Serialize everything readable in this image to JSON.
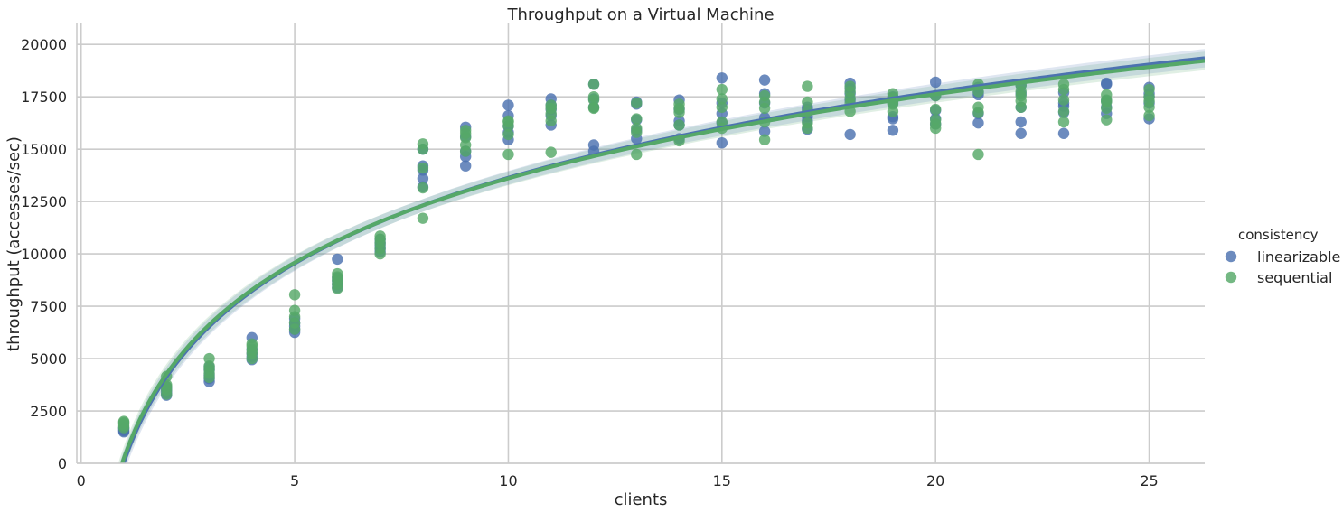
{
  "chart_data": {
    "type": "scatter",
    "title": "Throughput on a Virtual Machine",
    "xlabel": "clients",
    "ylabel": "throughput (accesses/sec)",
    "xlim": [
      -0.1,
      26.3
    ],
    "ylim": [
      0,
      21000
    ],
    "x_ticks": [
      0,
      5,
      10,
      15,
      20,
      25
    ],
    "y_ticks": [
      0,
      2500,
      5000,
      7500,
      10000,
      12500,
      15000,
      17500,
      20000
    ],
    "grid": true,
    "legend": {
      "title": "consistency",
      "placement": "right"
    },
    "fit": "logarithmic regression with confidence band",
    "series": [
      {
        "name": "linearizable",
        "color": "#4c72b0",
        "fit_line": {
          "a": 50,
          "b": 5900
        },
        "points": [
          [
            1,
            1500
          ],
          [
            1,
            1550
          ],
          [
            1,
            1600
          ],
          [
            1,
            1650
          ],
          [
            1,
            1700
          ],
          [
            2,
            3250
          ],
          [
            2,
            3350
          ],
          [
            2,
            3450
          ],
          [
            2,
            3550
          ],
          [
            2,
            3650
          ],
          [
            3,
            3900
          ],
          [
            3,
            4050
          ],
          [
            3,
            4200
          ],
          [
            3,
            4450
          ],
          [
            3,
            4600
          ],
          [
            4,
            4950
          ],
          [
            4,
            5100
          ],
          [
            4,
            5250
          ],
          [
            4,
            5450
          ],
          [
            4,
            6000
          ],
          [
            5,
            6250
          ],
          [
            5,
            6400
          ],
          [
            5,
            6550
          ],
          [
            5,
            6700
          ],
          [
            5,
            6900
          ],
          [
            6,
            8400
          ],
          [
            6,
            8550
          ],
          [
            6,
            8700
          ],
          [
            6,
            8850
          ],
          [
            6,
            9750
          ],
          [
            7,
            10100
          ],
          [
            7,
            10250
          ],
          [
            7,
            10400
          ],
          [
            7,
            10550
          ],
          [
            7,
            10700
          ],
          [
            8,
            13200
          ],
          [
            8,
            13600
          ],
          [
            8,
            14000
          ],
          [
            8,
            14200
          ],
          [
            8,
            15000
          ],
          [
            9,
            14200
          ],
          [
            9,
            14650
          ],
          [
            9,
            14900
          ],
          [
            9,
            15600
          ],
          [
            9,
            16050
          ],
          [
            10,
            15450
          ],
          [
            10,
            15800
          ],
          [
            10,
            16100
          ],
          [
            10,
            16600
          ],
          [
            10,
            17100
          ],
          [
            11,
            16150
          ],
          [
            11,
            16600
          ],
          [
            11,
            16900
          ],
          [
            11,
            17100
          ],
          [
            11,
            17400
          ],
          [
            12,
            14900
          ],
          [
            12,
            15200
          ],
          [
            12,
            17000
          ],
          [
            12,
            17400
          ],
          [
            12,
            18100
          ],
          [
            13,
            15500
          ],
          [
            13,
            15900
          ],
          [
            13,
            16400
          ],
          [
            13,
            17150
          ],
          [
            13,
            17250
          ],
          [
            14,
            15500
          ],
          [
            14,
            16150
          ],
          [
            14,
            16350
          ],
          [
            14,
            16900
          ],
          [
            14,
            17350
          ],
          [
            15,
            15300
          ],
          [
            15,
            16250
          ],
          [
            15,
            16700
          ],
          [
            15,
            17200
          ],
          [
            15,
            18400
          ],
          [
            16,
            15850
          ],
          [
            16,
            16500
          ],
          [
            16,
            17200
          ],
          [
            16,
            17650
          ],
          [
            16,
            18300
          ],
          [
            17,
            15950
          ],
          [
            17,
            16350
          ],
          [
            17,
            16550
          ],
          [
            17,
            16900
          ],
          [
            17,
            17000
          ],
          [
            18,
            15700
          ],
          [
            18,
            17350
          ],
          [
            18,
            17650
          ],
          [
            18,
            17900
          ],
          [
            18,
            18150
          ],
          [
            19,
            15900
          ],
          [
            19,
            16450
          ],
          [
            19,
            16550
          ],
          [
            19,
            17200
          ],
          [
            19,
            17500
          ],
          [
            20,
            16200
          ],
          [
            20,
            16450
          ],
          [
            20,
            16850
          ],
          [
            20,
            17550
          ],
          [
            20,
            18200
          ],
          [
            21,
            16250
          ],
          [
            21,
            16700
          ],
          [
            21,
            17600
          ],
          [
            21,
            17700
          ],
          [
            21,
            17950
          ],
          [
            22,
            15750
          ],
          [
            22,
            16300
          ],
          [
            22,
            17000
          ],
          [
            22,
            17650
          ],
          [
            22,
            18050
          ],
          [
            23,
            15750
          ],
          [
            23,
            16750
          ],
          [
            23,
            17050
          ],
          [
            23,
            17200
          ],
          [
            23,
            17700
          ],
          [
            24,
            16700
          ],
          [
            24,
            17000
          ],
          [
            24,
            17300
          ],
          [
            24,
            18100
          ],
          [
            24,
            18150
          ],
          [
            25,
            16450
          ],
          [
            25,
            17200
          ],
          [
            25,
            17500
          ],
          [
            25,
            17650
          ],
          [
            25,
            17950
          ]
        ]
      },
      {
        "name": "sequential",
        "color": "#55a868",
        "fit_line": {
          "a": 250,
          "b": 5800
        },
        "points": [
          [
            1,
            1700
          ],
          [
            1,
            1800
          ],
          [
            1,
            1900
          ],
          [
            1,
            1950
          ],
          [
            1,
            2000
          ],
          [
            2,
            3300
          ],
          [
            2,
            3500
          ],
          [
            2,
            3650
          ],
          [
            2,
            3750
          ],
          [
            2,
            4150
          ],
          [
            3,
            4100
          ],
          [
            3,
            4300
          ],
          [
            3,
            4500
          ],
          [
            3,
            4650
          ],
          [
            3,
            5000
          ],
          [
            4,
            5000
          ],
          [
            4,
            5250
          ],
          [
            4,
            5400
          ],
          [
            4,
            5600
          ],
          [
            4,
            5700
          ],
          [
            5,
            6400
          ],
          [
            5,
            6700
          ],
          [
            5,
            7000
          ],
          [
            5,
            7300
          ],
          [
            5,
            8050
          ],
          [
            6,
            8350
          ],
          [
            6,
            8550
          ],
          [
            6,
            8750
          ],
          [
            6,
            8900
          ],
          [
            6,
            9050
          ],
          [
            7,
            10000
          ],
          [
            7,
            10250
          ],
          [
            7,
            10500
          ],
          [
            7,
            10700
          ],
          [
            7,
            10850
          ],
          [
            8,
            11700
          ],
          [
            8,
            13150
          ],
          [
            8,
            14100
          ],
          [
            8,
            15000
          ],
          [
            8,
            15250
          ],
          [
            9,
            14900
          ],
          [
            9,
            15200
          ],
          [
            9,
            15550
          ],
          [
            9,
            15750
          ],
          [
            9,
            15900
          ],
          [
            10,
            14750
          ],
          [
            10,
            15700
          ],
          [
            10,
            16100
          ],
          [
            10,
            16300
          ],
          [
            10,
            16350
          ],
          [
            11,
            14850
          ],
          [
            11,
            16350
          ],
          [
            11,
            16700
          ],
          [
            11,
            16950
          ],
          [
            11,
            17100
          ],
          [
            12,
            16950
          ],
          [
            12,
            17000
          ],
          [
            12,
            17350
          ],
          [
            12,
            17500
          ],
          [
            12,
            18100
          ],
          [
            13,
            14750
          ],
          [
            13,
            15800
          ],
          [
            13,
            16000
          ],
          [
            13,
            16450
          ],
          [
            13,
            17200
          ],
          [
            14,
            15400
          ],
          [
            14,
            16150
          ],
          [
            14,
            16750
          ],
          [
            14,
            16950
          ],
          [
            14,
            17150
          ],
          [
            15,
            16000
          ],
          [
            15,
            16300
          ],
          [
            15,
            17000
          ],
          [
            15,
            17400
          ],
          [
            15,
            17850
          ],
          [
            16,
            15450
          ],
          [
            16,
            16300
          ],
          [
            16,
            16950
          ],
          [
            16,
            17250
          ],
          [
            16,
            17550
          ],
          [
            17,
            16000
          ],
          [
            17,
            16250
          ],
          [
            17,
            16800
          ],
          [
            17,
            17250
          ],
          [
            17,
            18000
          ],
          [
            18,
            16800
          ],
          [
            18,
            17200
          ],
          [
            18,
            17450
          ],
          [
            18,
            17750
          ],
          [
            18,
            18000
          ],
          [
            19,
            16800
          ],
          [
            19,
            17150
          ],
          [
            19,
            17250
          ],
          [
            19,
            17450
          ],
          [
            19,
            17650
          ],
          [
            20,
            16000
          ],
          [
            20,
            16200
          ],
          [
            20,
            16400
          ],
          [
            20,
            16900
          ],
          [
            20,
            17550
          ],
          [
            21,
            14750
          ],
          [
            21,
            16750
          ],
          [
            21,
            17000
          ],
          [
            21,
            17750
          ],
          [
            21,
            18100
          ],
          [
            22,
            17000
          ],
          [
            22,
            17300
          ],
          [
            22,
            17550
          ],
          [
            22,
            17750
          ],
          [
            22,
            18050
          ],
          [
            23,
            16300
          ],
          [
            23,
            16800
          ],
          [
            23,
            17350
          ],
          [
            23,
            17850
          ],
          [
            23,
            18100
          ],
          [
            24,
            16400
          ],
          [
            24,
            16950
          ],
          [
            24,
            17250
          ],
          [
            24,
            17350
          ],
          [
            24,
            17600
          ],
          [
            25,
            16600
          ],
          [
            25,
            17000
          ],
          [
            25,
            17300
          ],
          [
            25,
            17500
          ],
          [
            25,
            17850
          ]
        ]
      }
    ]
  }
}
